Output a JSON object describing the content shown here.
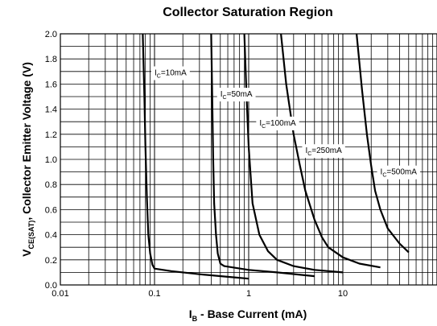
{
  "chart_data": {
    "type": "line",
    "title": "Collector Saturation Region",
    "xlabel_main": "I",
    "xlabel_sub": "B",
    "xlabel_rest": " - Base Current (mA)",
    "ylabel_main": "V",
    "ylabel_sub": "CE(SAT)",
    "ylabel_rest": ", Collector Emitter Voltage (V)",
    "x_scale": "log",
    "xlim": [
      0.01,
      100
    ],
    "ylim": [
      0.0,
      2.0
    ],
    "x_ticks": [
      "0.01",
      "0.1",
      "1",
      "10"
    ],
    "y_ticks": [
      "0.0",
      "0.2",
      "0.4",
      "0.6",
      "0.8",
      "1.0",
      "1.2",
      "1.4",
      "1.6",
      "1.8",
      "2.0"
    ],
    "grid": true,
    "series": [
      {
        "name": "I_C=10mA",
        "label_main": "I",
        "label_sub": "C",
        "label_rest": "=10mA",
        "label_at": [
          0.1,
          1.67
        ],
        "x": [
          0.075,
          0.078,
          0.08,
          0.083,
          0.086,
          0.09,
          0.095,
          0.1,
          0.15,
          0.3,
          0.6,
          1.0
        ],
        "y": [
          2.0,
          1.5,
          1.1,
          0.7,
          0.4,
          0.25,
          0.16,
          0.13,
          0.11,
          0.085,
          0.065,
          0.05
        ]
      },
      {
        "name": "I_C=50mA",
        "label_main": "I",
        "label_sub": "C",
        "label_rest": "=50mA",
        "label_at": [
          0.5,
          1.5
        ],
        "x": [
          0.4,
          0.41,
          0.42,
          0.43,
          0.45,
          0.47,
          0.5,
          0.55,
          1.0,
          2.0,
          5.0
        ],
        "y": [
          2.0,
          1.5,
          1.0,
          0.65,
          0.4,
          0.25,
          0.17,
          0.15,
          0.12,
          0.1,
          0.07
        ]
      },
      {
        "name": "I_C=100mA",
        "label_main": "I",
        "label_sub": "C",
        "label_rest": "=100mA",
        "label_at": [
          1.3,
          1.27
        ],
        "x": [
          0.9,
          0.95,
          1.0,
          1.1,
          1.3,
          1.6,
          2.0,
          3.0,
          5.0,
          10.0
        ],
        "y": [
          2.0,
          1.5,
          1.1,
          0.65,
          0.4,
          0.27,
          0.2,
          0.15,
          0.12,
          0.1
        ]
      },
      {
        "name": "I_C=250mA",
        "label_main": "I",
        "label_sub": "C",
        "label_rest": "=250mA",
        "label_at": [
          4.0,
          1.05
        ],
        "x": [
          2.2,
          2.5,
          3.0,
          3.5,
          4.0,
          5.0,
          6.0,
          7.0,
          10.0,
          15.0,
          25.0
        ],
        "y": [
          2.0,
          1.6,
          1.2,
          0.95,
          0.75,
          0.52,
          0.38,
          0.3,
          0.22,
          0.17,
          0.14
        ]
      },
      {
        "name": "I_C=500mA",
        "label_main": "I",
        "label_sub": "C",
        "label_rest": "=500mA",
        "label_at": [
          25.0,
          0.88
        ],
        "x": [
          14.0,
          16.0,
          18.0,
          20.0,
          22.0,
          25.0,
          30.0,
          40.0,
          50.0
        ],
        "y": [
          2.0,
          1.55,
          1.2,
          0.95,
          0.75,
          0.6,
          0.45,
          0.33,
          0.26
        ]
      }
    ]
  }
}
